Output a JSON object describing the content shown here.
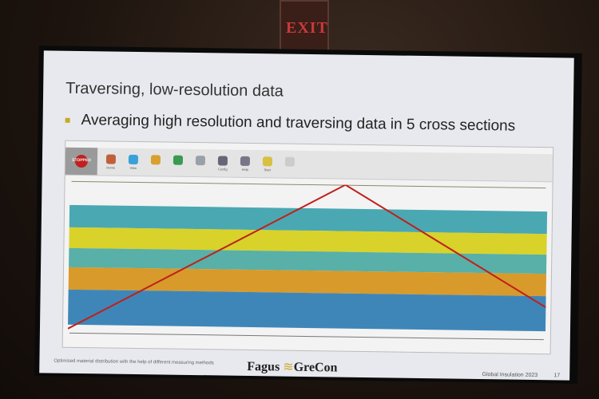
{
  "exit_sign": "EXIT",
  "slide": {
    "title": "Traversing, low-resolution data",
    "bullet": "Averaging high resolution and traversing data in 5 cross sections",
    "footer_text": "Optimised material distribution with the help of different measuring methods",
    "logo": {
      "left": "Fagus",
      "right": "GreCon"
    },
    "conference": "Global Insulation 2023",
    "page_number": "17"
  },
  "app": {
    "status_button": "STOPPED",
    "toolbar": [
      "Home",
      "View",
      "",
      "",
      "",
      "Config",
      "Help",
      "Start",
      ""
    ],
    "accent_color": "#c8a82a"
  },
  "colors": {
    "line": "#c0201a",
    "band_teal": "#3fa6b0",
    "band_yellow": "#d8d22a",
    "band_orange": "#d79a2a",
    "band_blue": "#3d7fb8"
  }
}
